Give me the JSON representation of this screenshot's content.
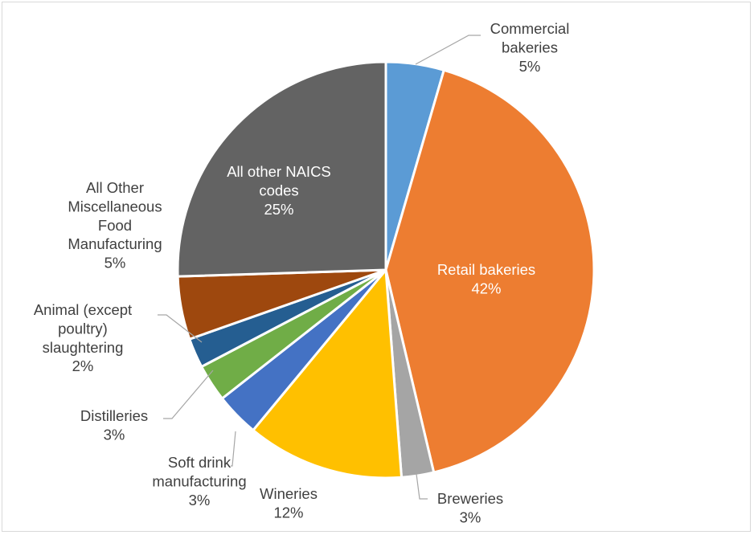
{
  "chart_data": {
    "type": "pie",
    "slices": [
      {
        "name": "Commercial bakeries",
        "label_lines": [
          "Commercial",
          "bakeries"
        ],
        "pct_label": "5%",
        "value": 4.5,
        "color": "#5B9BD5"
      },
      {
        "name": "Retail bakeries",
        "label_lines": [
          "Retail bakeries"
        ],
        "pct_label": "42%",
        "value": 41.8,
        "color": "#ED7D31"
      },
      {
        "name": "Breweries",
        "label_lines": [
          "Breweries"
        ],
        "pct_label": "3%",
        "value": 2.5,
        "color": "#A5A5A5"
      },
      {
        "name": "Wineries",
        "label_lines": [
          "Wineries"
        ],
        "pct_label": "12%",
        "value": 12.2,
        "color": "#FFC000"
      },
      {
        "name": "Soft drink manufacturing",
        "label_lines": [
          "Soft drink",
          "manufacturing"
        ],
        "pct_label": "3%",
        "value": 3.4,
        "color": "#4472C4"
      },
      {
        "name": "Distilleries",
        "label_lines": [
          "Distilleries"
        ],
        "pct_label": "3%",
        "value": 2.9,
        "color": "#70AD47"
      },
      {
        "name": "Animal (except poultry) slaughtering",
        "label_lines": [
          "Animal (except",
          "poultry)",
          "slaughtering"
        ],
        "pct_label": "2%",
        "value": 2.3,
        "color": "#255E91"
      },
      {
        "name": "All Other Miscellaneous Food Manufacturing",
        "label_lines": [
          "All Other",
          "Miscellaneous",
          "Food",
          "Manufacturing"
        ],
        "pct_label": "5%",
        "value": 4.9,
        "color": "#9E480E"
      },
      {
        "name": "All other NAICS codes",
        "label_lines": [
          "All other NAICS",
          "codes"
        ],
        "pct_label": "25%",
        "value": 25.5,
        "color": "#636363"
      }
    ]
  }
}
